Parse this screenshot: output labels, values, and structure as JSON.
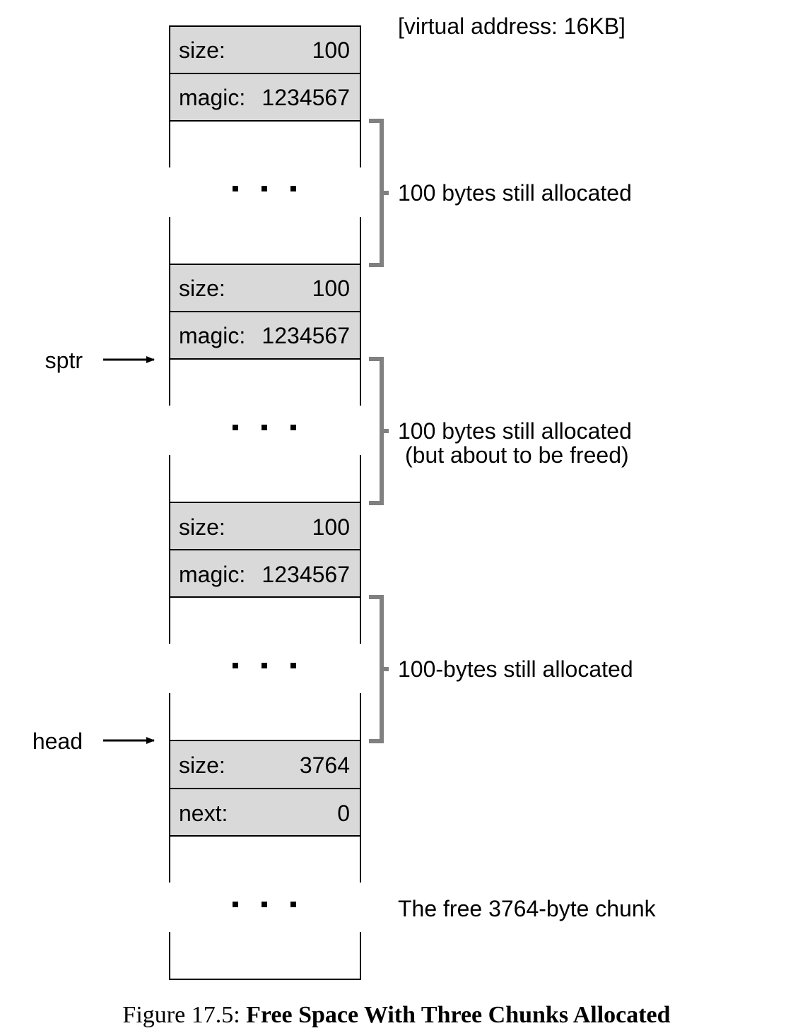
{
  "header_note": "[virtual address: 16KB]",
  "chunks": [
    {
      "header": [
        {
          "label": "size:",
          "value": "100"
        },
        {
          "label": "magic:",
          "value": "1234567"
        }
      ],
      "dots": "...",
      "annotation": [
        "100 bytes still allocated"
      ]
    },
    {
      "header": [
        {
          "label": "size:",
          "value": "100"
        },
        {
          "label": "magic:",
          "value": "1234567"
        }
      ],
      "dots": "...",
      "annotation": [
        "100 bytes still allocated",
        "(but about to be freed)"
      ]
    },
    {
      "header": [
        {
          "label": "size:",
          "value": "100"
        },
        {
          "label": "magic:",
          "value": "1234567"
        }
      ],
      "dots": "...",
      "annotation": [
        "100-bytes still allocated"
      ]
    },
    {
      "header": [
        {
          "label": "size:",
          "value": "3764"
        },
        {
          "label": "next:",
          "value": "0"
        }
      ],
      "dots": "...",
      "annotation": [
        "The free 3764-byte chunk"
      ]
    }
  ],
  "pointers": {
    "sptr": "sptr",
    "head": "head"
  },
  "caption": {
    "prefix": "Figure 17.5:",
    "title": "Free Space With Three Chunks Allocated"
  },
  "colors": {
    "header_fill": "#d9d9d9",
    "bracket": "#808080",
    "line": "#000000"
  }
}
